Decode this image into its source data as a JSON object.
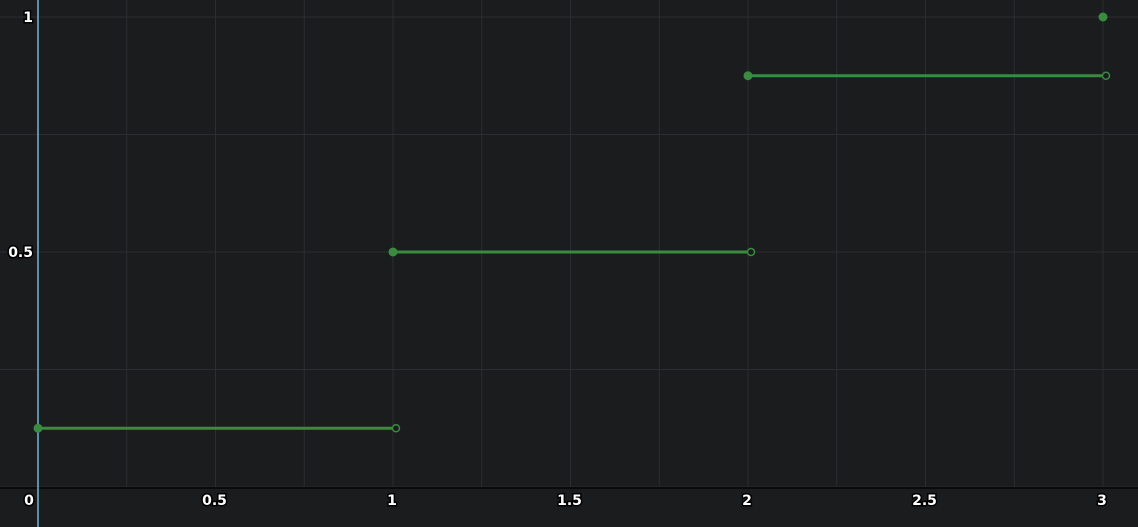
{
  "chart_data": {
    "type": "line",
    "title": "",
    "xlabel": "",
    "ylabel": "",
    "xlim": [
      0,
      3.08
    ],
    "ylim": [
      -0.12,
      1.0
    ],
    "grid": true,
    "legend": "none",
    "x_ticks": [
      "0",
      "0.5",
      "1",
      "1.5",
      "2",
      "2.5",
      "3"
    ],
    "y_ticks": [
      "0.5",
      "1"
    ],
    "series": [
      {
        "style": "step-left-closed",
        "segments": [
          {
            "x0": 0,
            "x1": 1,
            "y": 0.125
          },
          {
            "x0": 1,
            "x1": 2,
            "y": 0.5
          },
          {
            "x0": 2,
            "x1": 3,
            "y": 0.875
          }
        ],
        "points": [
          {
            "x": 3,
            "y": 1
          }
        ],
        "color": "#3a8a40"
      }
    ],
    "colors": {
      "background": "#1b1c1e",
      "grid": "#2c2d30",
      "y_axis_line": "#6fb7d6",
      "x_axis_line": "#0a0a0a",
      "series": "#3a8a40",
      "labels": "#ffffff"
    }
  }
}
